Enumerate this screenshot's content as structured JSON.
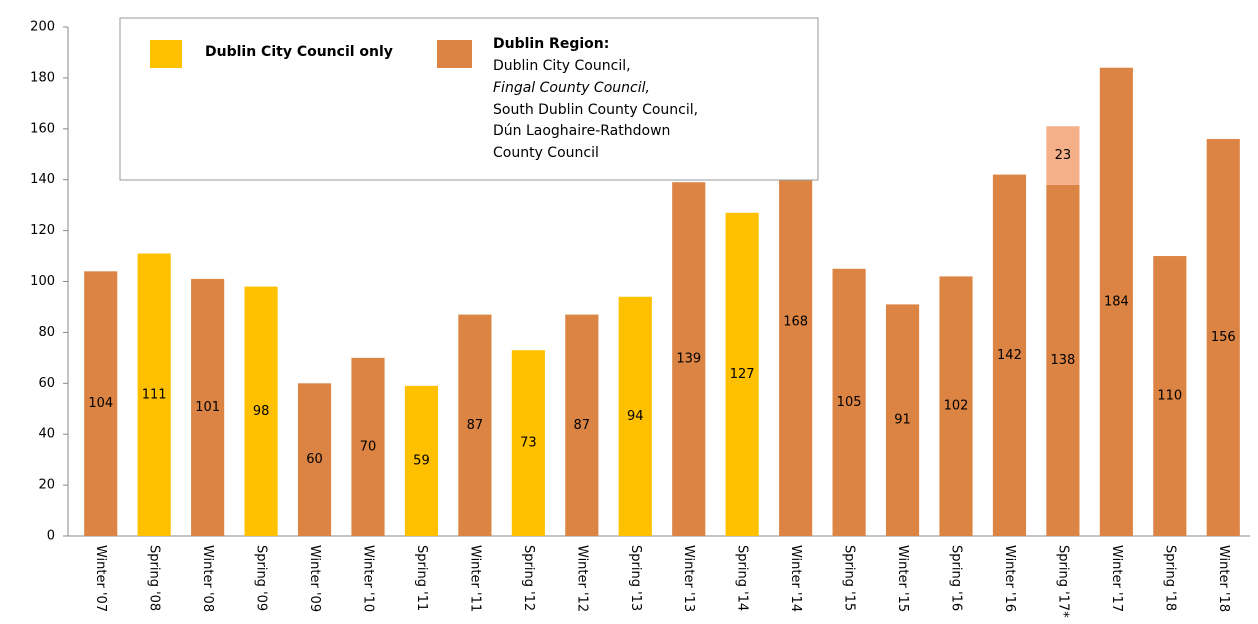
{
  "chart_data": {
    "type": "bar",
    "stacked": true,
    "categories": [
      "Winter '07",
      "Spring '08",
      "Winter '08",
      "Spring '09",
      "Winter '09",
      "Winter '10",
      "Spring '11",
      "Winter '11",
      "Spring '12",
      "Winter '12",
      "Spring '13",
      "Winter '13",
      "Spring '14",
      "Winter '14",
      "Spring '15",
      "Winter '15",
      "Spring '16",
      "Winter '16",
      "Spring '17*",
      "Winter '17",
      "Spring '18",
      "Winter '18"
    ],
    "series": [
      {
        "name": "Dublin City Council only",
        "color": "#ffc000",
        "values": [
          null,
          111,
          null,
          98,
          null,
          null,
          59,
          null,
          73,
          null,
          94,
          null,
          127,
          null,
          null,
          null,
          null,
          null,
          null,
          null,
          null,
          null
        ]
      },
      {
        "name": "Dublin Region:",
        "color": "#db8443",
        "values": [
          104,
          null,
          101,
          null,
          60,
          70,
          null,
          87,
          null,
          87,
          null,
          139,
          null,
          168,
          105,
          91,
          102,
          142,
          138,
          184,
          110,
          156
        ]
      },
      {
        "color": "#f5b08a",
        "values": [
          null,
          null,
          null,
          null,
          null,
          null,
          null,
          null,
          null,
          null,
          null,
          null,
          null,
          null,
          null,
          null,
          null,
          null,
          23,
          null,
          null,
          null
        ]
      }
    ],
    "legend_note": [
      "Dublin City Council,",
      "Fingal County Council,",
      "South Dublin County Council,",
      "Dún Laoghaire-Rathdown",
      "County Council"
    ],
    "ylim": [
      0,
      200
    ],
    "yticks": [
      0,
      20,
      40,
      60,
      80,
      100,
      120,
      140,
      160,
      180,
      200
    ],
    "grid": false
  }
}
